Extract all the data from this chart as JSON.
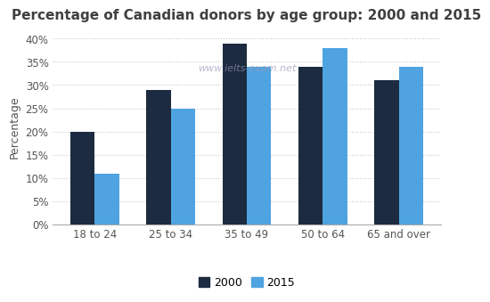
{
  "title": "Percentage of Canadian donors by age group: 2000 and 2015",
  "watermark": "www.ielts-exam.net",
  "categories": [
    "18 to 24",
    "25 to 34",
    "35 to 49",
    "50 to 64",
    "65 and over"
  ],
  "values_2000": [
    20,
    29,
    39,
    34,
    31
  ],
  "values_2015": [
    11,
    25,
    34,
    38,
    34
  ],
  "color_2000": "#1c2b40",
  "color_2015": "#4fa3e0",
  "ylabel": "Percentage",
  "ylim": [
    0,
    42
  ],
  "yticks": [
    0,
    5,
    10,
    15,
    20,
    25,
    30,
    35,
    40
  ],
  "ytick_labels": [
    "0%",
    "5%",
    "10%",
    "15%",
    "20%",
    "25%",
    "30%",
    "35%",
    "40%"
  ],
  "legend_labels": [
    "2000",
    "2015"
  ],
  "background_color": "#ffffff",
  "grid_color": "#c8c8c8",
  "title_fontsize": 11,
  "axis_fontsize": 8.5,
  "legend_fontsize": 9,
  "bar_width": 0.32,
  "title_color": "#404040",
  "watermark_color": "#9999bb",
  "ylabel_fontsize": 9
}
